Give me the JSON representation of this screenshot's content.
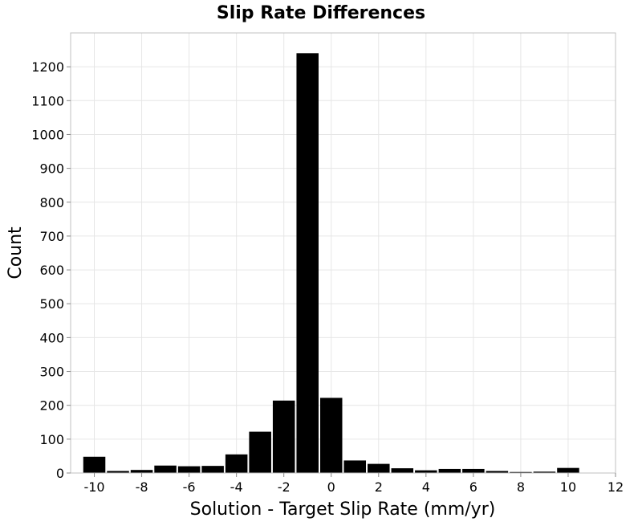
{
  "chart_data": {
    "type": "bar",
    "title": "Slip Rate Differences",
    "xlabel": "Solution - Target Slip Rate (mm/yr)",
    "ylabel": "Count",
    "xlim": [
      -11,
      12
    ],
    "ylim": [
      0,
      1300
    ],
    "x_ticks": [
      -10,
      -8,
      -6,
      -4,
      -2,
      0,
      2,
      4,
      6,
      8,
      10,
      12
    ],
    "x_tick_labels": [
      "-10",
      "-8",
      "-6",
      "-4",
      "-2",
      "0",
      "2",
      "4",
      "6",
      "8",
      "10",
      "12"
    ],
    "y_ticks": [
      0,
      100,
      200,
      300,
      400,
      500,
      600,
      700,
      800,
      900,
      1000,
      1100,
      1200
    ],
    "y_tick_labels": [
      "0",
      "100",
      "200",
      "300",
      "400",
      "500",
      "600",
      "700",
      "800",
      "900",
      "1000",
      "1100",
      "1200"
    ],
    "bin_width": 1,
    "bins": [
      {
        "x": -10,
        "value": 48
      },
      {
        "x": -9,
        "value": 6
      },
      {
        "x": -8,
        "value": 9
      },
      {
        "x": -7,
        "value": 22
      },
      {
        "x": -6,
        "value": 20
      },
      {
        "x": -5,
        "value": 21
      },
      {
        "x": -4,
        "value": 55
      },
      {
        "x": -3,
        "value": 122
      },
      {
        "x": -2,
        "value": 214
      },
      {
        "x": -1,
        "value": 1240
      },
      {
        "x": 0,
        "value": 222
      },
      {
        "x": 1,
        "value": 37
      },
      {
        "x": 2,
        "value": 27
      },
      {
        "x": 3,
        "value": 14
      },
      {
        "x": 4,
        "value": 8
      },
      {
        "x": 5,
        "value": 12
      },
      {
        "x": 6,
        "value": 12
      },
      {
        "x": 7,
        "value": 6
      },
      {
        "x": 8,
        "value": 3
      },
      {
        "x": 9,
        "value": 4
      },
      {
        "x": 10,
        "value": 15
      }
    ],
    "grid": true,
    "colors": {
      "bar": "#000000",
      "grid": "#e6e6e6",
      "frame": "#c0c0c0"
    }
  }
}
